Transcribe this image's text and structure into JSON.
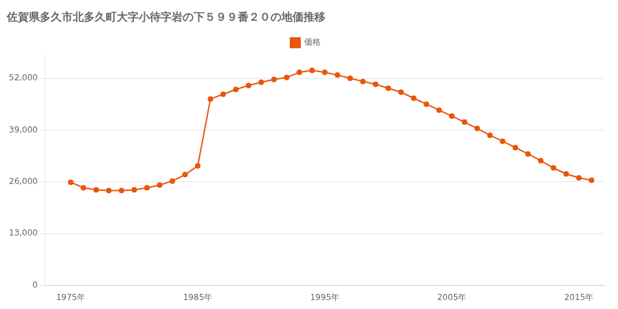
{
  "chart_data": {
    "type": "line",
    "title": "佐賀県多久市北多久町大字小待字岩の下５９９番２０の地価推移",
    "x": [
      1975,
      1976,
      1977,
      1978,
      1979,
      1980,
      1981,
      1982,
      1983,
      1984,
      1985,
      1986,
      1987,
      1988,
      1989,
      1990,
      1991,
      1992,
      1993,
      1994,
      1995,
      1996,
      1997,
      1998,
      1999,
      2000,
      2001,
      2002,
      2003,
      2004,
      2005,
      2006,
      2007,
      2008,
      2009,
      2010,
      2011,
      2012,
      2013,
      2014,
      2015,
      2016
    ],
    "series": [
      {
        "name": "価格",
        "color": "#E8560A",
        "marker": "circle",
        "values": [
          25900,
          24500,
          24000,
          23800,
          23800,
          24000,
          24500,
          25200,
          26200,
          27800,
          30000,
          46800,
          48000,
          49200,
          50200,
          51000,
          51700,
          52200,
          53500,
          54000,
          53500,
          52800,
          52000,
          51200,
          50500,
          49500,
          48500,
          47000,
          45500,
          44000,
          42500,
          41000,
          39400,
          37700,
          36200,
          34600,
          33000,
          31300,
          29500,
          28000,
          27000,
          26400
        ]
      }
    ],
    "xlim": [
      1973,
      2017
    ],
    "xticks": [
      {
        "value": 1975,
        "label": "1975年"
      },
      {
        "value": 1985,
        "label": "1985年"
      },
      {
        "value": 1995,
        "label": "1995年"
      },
      {
        "value": 2005,
        "label": "2005年"
      },
      {
        "value": 2015,
        "label": "2015年"
      }
    ],
    "ylim": [
      0,
      58000
    ],
    "yticks": [
      0,
      {
        "value": 13000,
        "label": "13,000"
      },
      {
        "value": 26000,
        "label": "26,000"
      },
      {
        "value": 39000,
        "label": "39,000"
      },
      {
        "value": 52000,
        "label": "52,000"
      }
    ],
    "grid": "y",
    "legend": "top"
  }
}
